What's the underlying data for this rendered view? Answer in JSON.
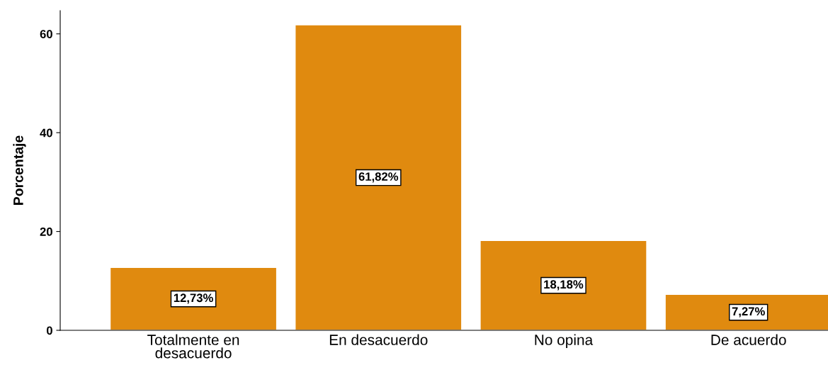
{
  "chart_data": {
    "type": "bar",
    "ylabel": "Porcentaje",
    "categories": [
      "Totalmente en\ndesacuerdo",
      "En desacuerdo",
      "No opina",
      "De acuerdo"
    ],
    "values": [
      12.73,
      61.82,
      18.18,
      7.27
    ],
    "value_labels": [
      "12,73%",
      "61,82%",
      "18,18%",
      "7,27%"
    ],
    "color": "#e08a0f",
    "ylim": [
      0,
      64.7
    ],
    "yticks": [
      0,
      20,
      40,
      60
    ],
    "grid": false,
    "legend": false
  }
}
